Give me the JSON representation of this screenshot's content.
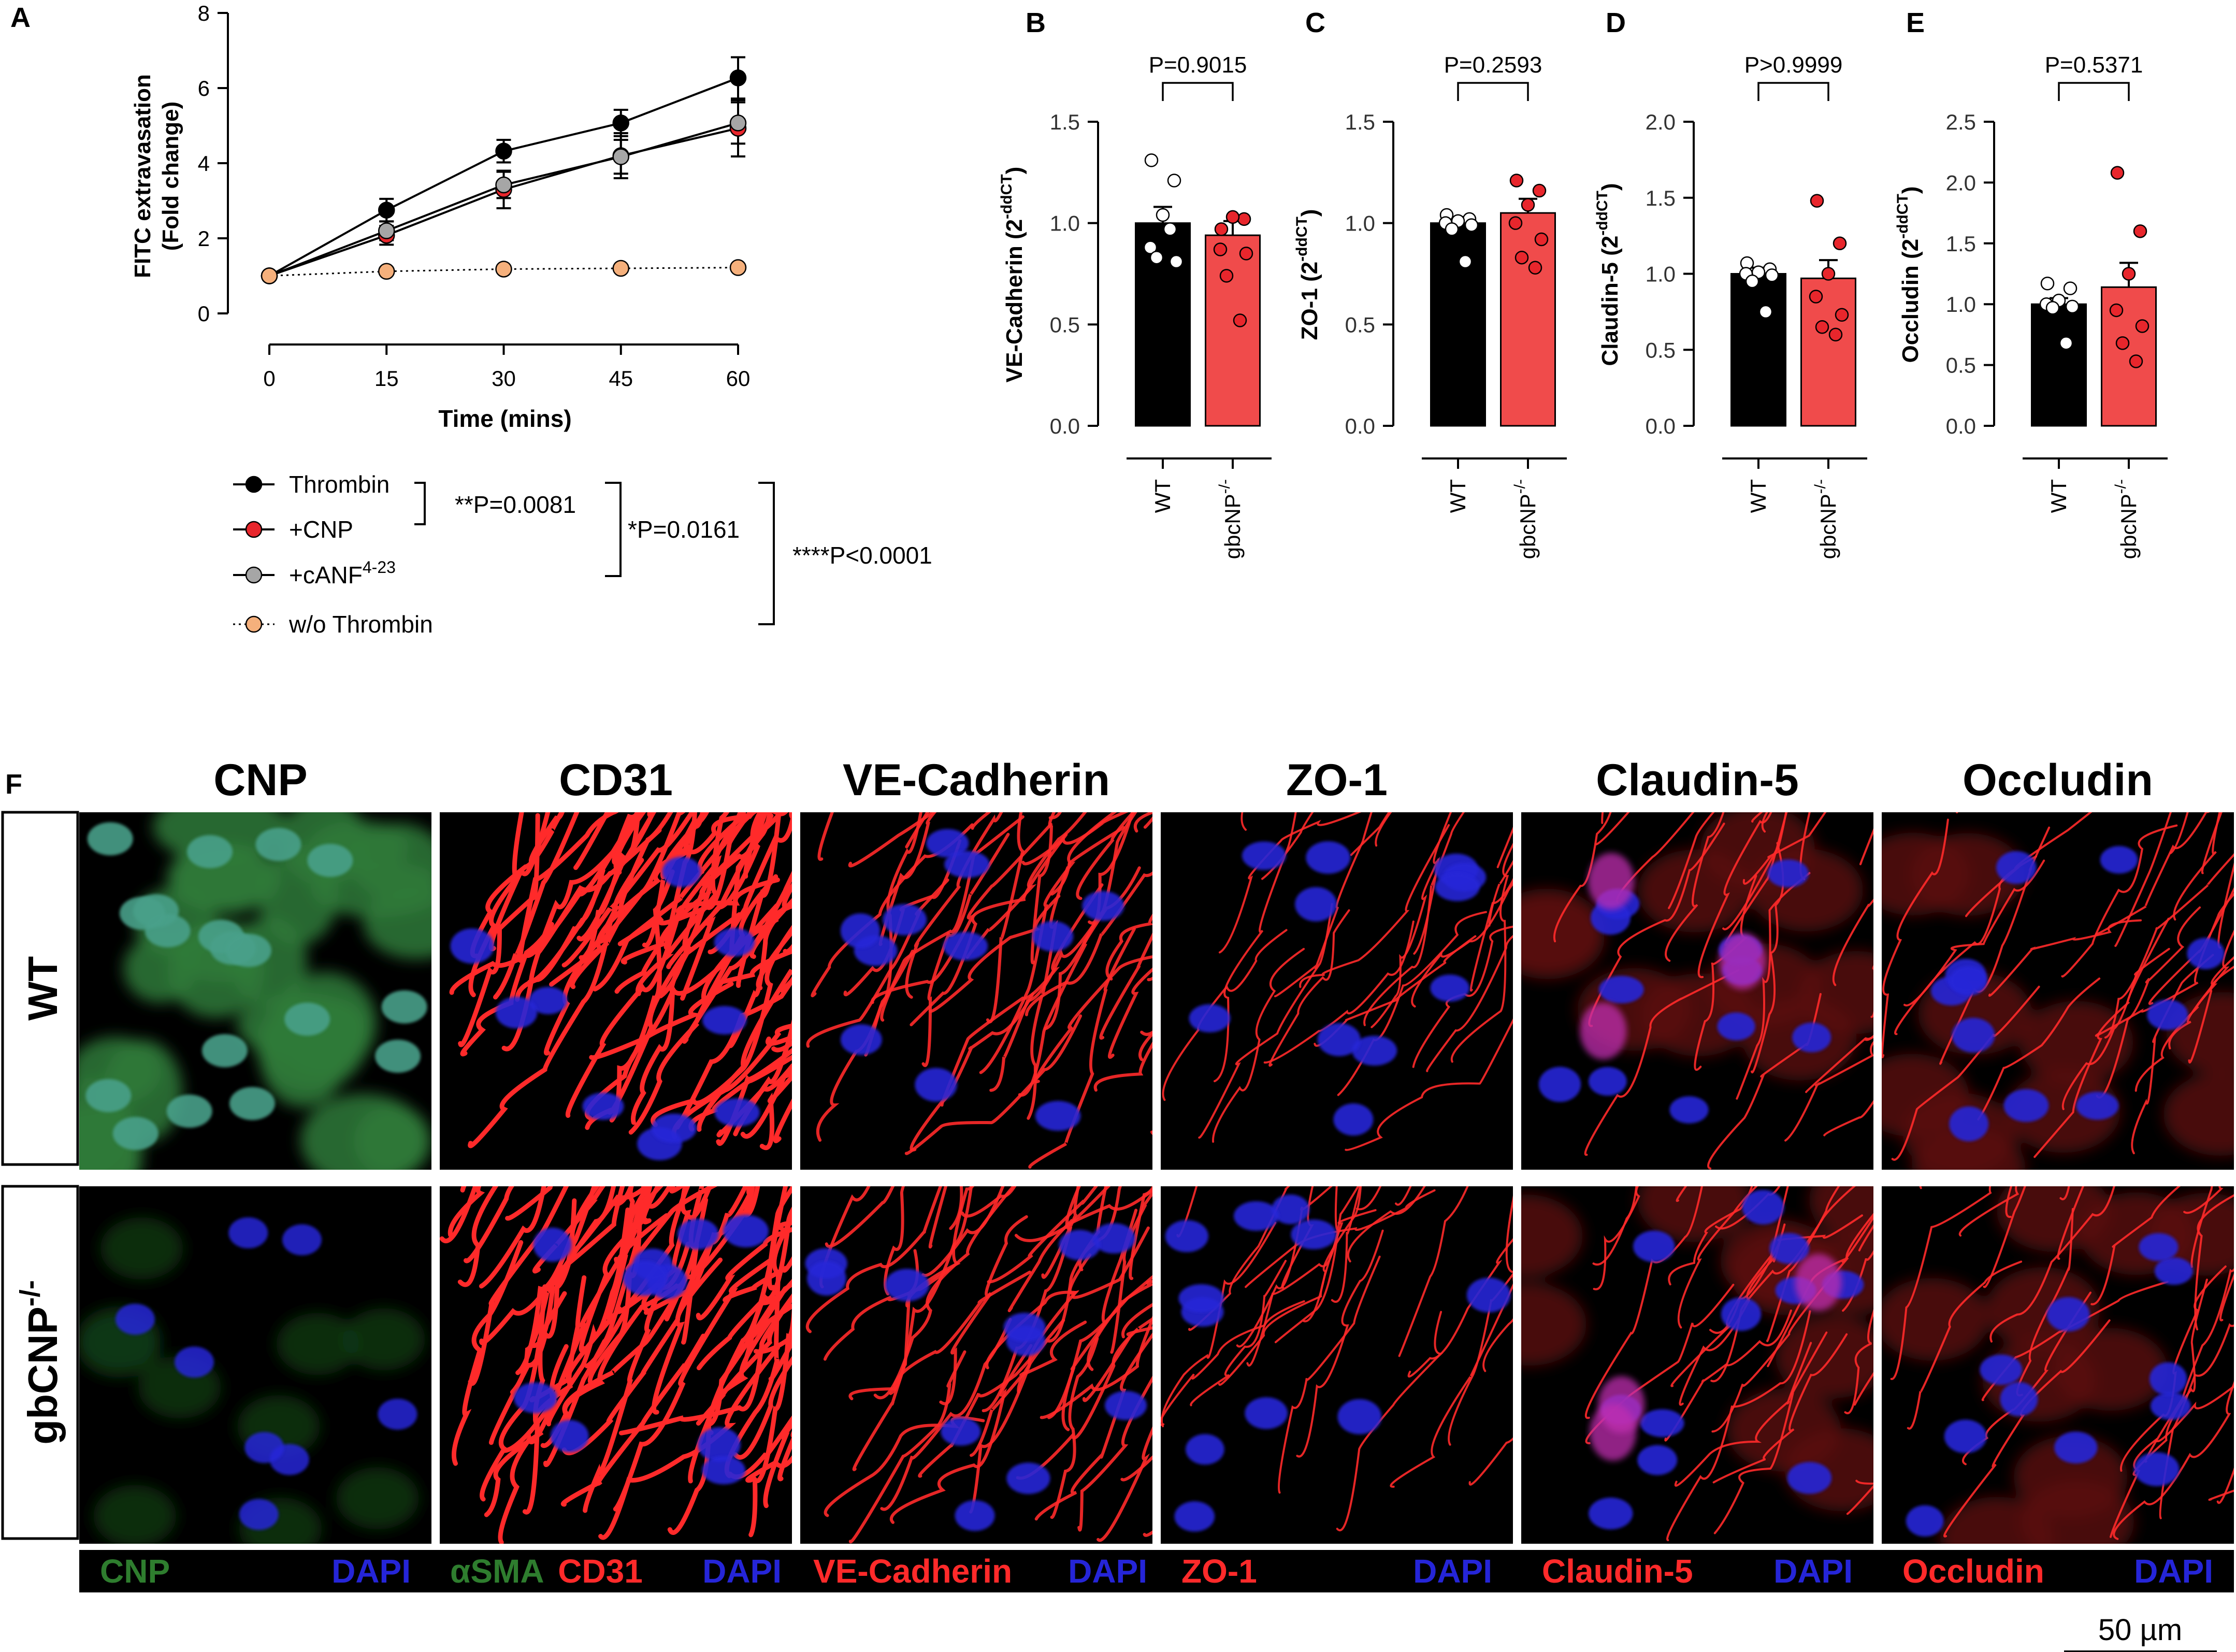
{
  "panel_letters": [
    "A",
    "B",
    "C",
    "D",
    "E",
    "F"
  ],
  "colors": {
    "thrombin": "#000000",
    "cnp": "#e8262c",
    "canf": "#a6a6a6",
    "no_thrombin": "#f5b07c",
    "wt_bar": "#000000",
    "ko_bar": "#f04b4b",
    "micro_red": "#ff2a2a",
    "micro_blue": "#2525d8",
    "micro_green": "#2e7d2e"
  },
  "stats_A": {
    "bracket1": "**P=0.0081",
    "bracket2": "*P=0.0161",
    "bracket3": "****P<0.0001"
  },
  "chart_data": [
    {
      "panel": "A",
      "type": "line",
      "xlabel": "Time (mins)",
      "ylabel_line1": "FITC extravasation",
      "ylabel_line2": "(Fold change)",
      "x": [
        0,
        15,
        30,
        45,
        60
      ],
      "xticks": [
        "0",
        "15",
        "30",
        "45",
        "60"
      ],
      "yticks": [
        "0",
        "2",
        "4",
        "6",
        "8"
      ],
      "ylim": [
        0,
        8
      ],
      "series": [
        {
          "name": "Thrombin",
          "sup": "",
          "values": [
            1.0,
            2.75,
            4.32,
            5.07,
            6.27
          ],
          "err": [
            0,
            0.3,
            0.3,
            0.35,
            0.55
          ],
          "color": "#000000",
          "dotted": false
        },
        {
          "name": "+CNP",
          "sup": "",
          "values": [
            1.0,
            2.08,
            3.3,
            4.2,
            4.93
          ],
          "err": [
            0,
            0.25,
            0.5,
            0.6,
            0.75
          ],
          "color": "#e8262c",
          "dotted": false
        },
        {
          "name": "+cANF",
          "sup": "4-23",
          "values": [
            1.0,
            2.2,
            3.42,
            4.17,
            5.07
          ],
          "err": [
            0,
            0.25,
            0.35,
            0.45,
            0.55
          ],
          "color": "#a6a6a6",
          "dotted": false
        },
        {
          "name": "w/o Thrombin",
          "sup": "",
          "values": [
            1.0,
            1.12,
            1.18,
            1.2,
            1.22
          ],
          "err": [
            0,
            0,
            0,
            0,
            0
          ],
          "color": "#f5b07c",
          "dotted": true
        }
      ]
    },
    {
      "panel": "B",
      "type": "bar",
      "ylabel": "VE-Cadherin (2",
      "ylabel_sup": "-ddCT",
      "ylabel_end": ")",
      "p_value": "P=0.9015",
      "yticks": [
        "0.0",
        "0.5",
        "1.0",
        "1.5"
      ],
      "ylim": [
        0,
        1.5
      ],
      "categories": [
        "WT",
        "gbcNP"
      ],
      "category_sup": [
        "",
        "-/-"
      ],
      "values": [
        1.0,
        0.94
      ],
      "errors": [
        0.08,
        0.07
      ],
      "points": [
        [
          1.31,
          1.21,
          1.04,
          0.88,
          0.81,
          0.83,
          0.97
        ],
        [
          0.97,
          1.02,
          1.03,
          0.87,
          0.85,
          0.74,
          0.52
        ]
      ]
    },
    {
      "panel": "C",
      "type": "bar",
      "ylabel": "ZO-1 (2",
      "ylabel_sup": "-ddCT",
      "ylabel_end": ")",
      "p_value": "P=0.2593",
      "yticks": [
        "0.0",
        "0.5",
        "1.0",
        "1.5"
      ],
      "ylim": [
        0,
        1.5
      ],
      "categories": [
        "WT",
        "gbcNP"
      ],
      "category_sup": [
        "",
        "-/-"
      ],
      "values": [
        1.0,
        1.05
      ],
      "errors": [
        0.03,
        0.07
      ],
      "points": [
        [
          1.04,
          1.02,
          1.01,
          1.0,
          0.99,
          0.97,
          0.81
        ],
        [
          1.21,
          1.16,
          1.09,
          1.0,
          0.92,
          0.83,
          0.78
        ]
      ]
    },
    {
      "panel": "D",
      "type": "bar",
      "ylabel": "Claudin-5 (2",
      "ylabel_sup": "-ddCT",
      "ylabel_end": ")",
      "p_value": "P>0.9999",
      "yticks": [
        "0.0",
        "0.5",
        "1.0",
        "1.5",
        "2.0"
      ],
      "ylim": [
        0,
        2.0
      ],
      "categories": [
        "WT",
        "gbcNP"
      ],
      "category_sup": [
        "",
        "-/-"
      ],
      "values": [
        1.0,
        0.97
      ],
      "errors": [
        0.04,
        0.12
      ],
      "points": [
        [
          1.07,
          1.03,
          1.01,
          1.0,
          0.99,
          0.95,
          0.75
        ],
        [
          1.48,
          1.2,
          1.0,
          0.85,
          0.73,
          0.65,
          0.6
        ]
      ]
    },
    {
      "panel": "E",
      "type": "bar",
      "ylabel": "Occludin (2",
      "ylabel_sup": "-ddCT",
      "ylabel_end": ")",
      "p_value": "P=0.5371",
      "yticks": [
        "0.0",
        "0.5",
        "1.0",
        "1.5",
        "2.0",
        "2.5"
      ],
      "ylim": [
        0,
        2.5
      ],
      "categories": [
        "WT",
        "gbcNP"
      ],
      "category_sup": [
        "",
        "-/-"
      ],
      "values": [
        1.0,
        1.14
      ],
      "errors": [
        0.05,
        0.2
      ],
      "points": [
        [
          1.17,
          1.13,
          1.03,
          1.0,
          0.98,
          0.97,
          0.68
        ],
        [
          2.08,
          1.6,
          1.25,
          0.95,
          0.82,
          0.68,
          0.53
        ]
      ]
    }
  ],
  "micro": {
    "columns": [
      "CNP",
      "CD31",
      "VE-Cadherin",
      "ZO-1",
      "Claudin-5",
      "Occludin"
    ],
    "rows": [
      {
        "label": "WT",
        "sup": ""
      },
      {
        "label": "gbCNP",
        "sup": "-/-"
      }
    ],
    "captions": [
      [
        {
          "text": "CNP",
          "color": "green"
        },
        {
          "text": "DAPI",
          "color": "blue"
        }
      ],
      [
        {
          "text": "αSMA",
          "color": "green"
        },
        {
          "text": "CD31",
          "color": "red"
        },
        {
          "text": "DAPI",
          "color": "blue"
        }
      ],
      [
        {
          "text": "VE-Cadherin",
          "color": "red"
        },
        {
          "text": "DAPI",
          "color": "blue"
        }
      ],
      [
        {
          "text": "ZO-1",
          "color": "red"
        },
        {
          "text": "DAPI",
          "color": "blue"
        }
      ],
      [
        {
          "text": "Claudin-5",
          "color": "red"
        },
        {
          "text": "DAPI",
          "color": "blue"
        }
      ],
      [
        {
          "text": "Occludin",
          "color": "red"
        },
        {
          "text": "DAPI",
          "color": "blue"
        }
      ]
    ],
    "scale_bar": "50 µm"
  }
}
